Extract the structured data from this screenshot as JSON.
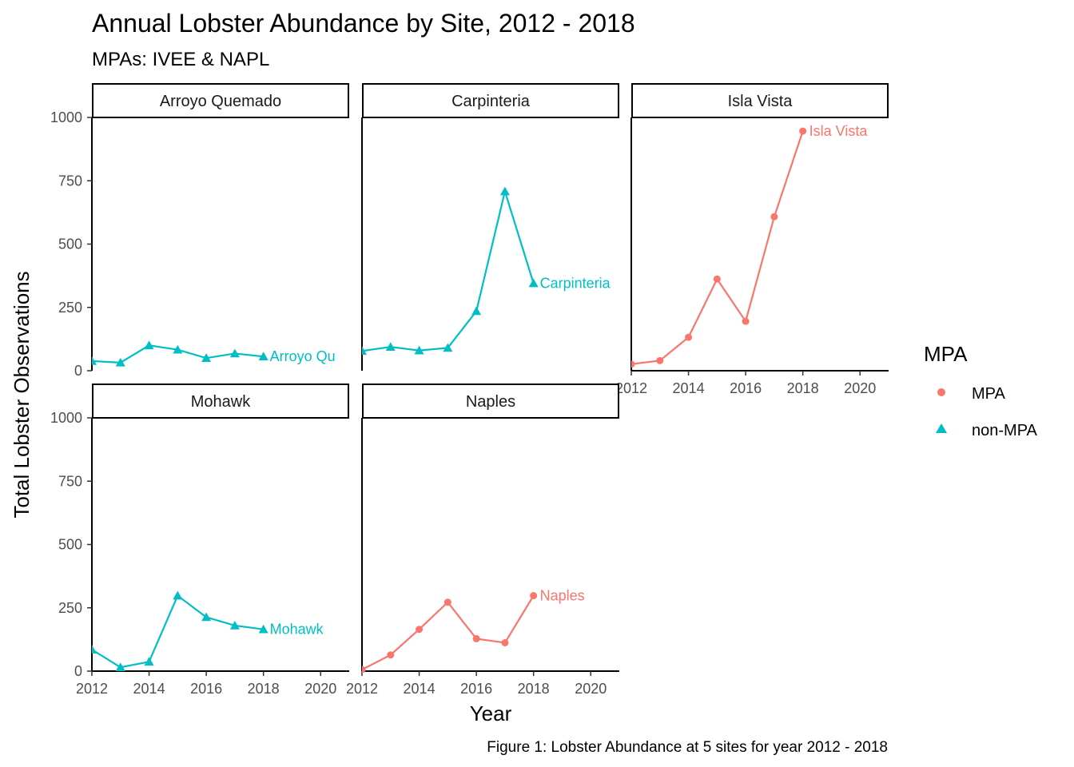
{
  "chart_data": {
    "type": "line",
    "title": "Annual Lobster Abundance by Site, 2012 - 2018",
    "subtitle": "MPAs: IVEE & NAPL",
    "xlabel": "Year",
    "ylabel": "Total Lobster Observations",
    "caption": "Figure 1: Lobster Abundance at 5 sites for year 2012 - 2018",
    "xlim": [
      2012,
      2021
    ],
    "ylim": [
      0,
      1100
    ],
    "x_ticks": [
      2012,
      2014,
      2016,
      2018,
      2020
    ],
    "y_ticks": [
      0,
      250,
      500,
      750,
      1000
    ],
    "grid": false,
    "legend": {
      "title": "MPA",
      "position": "right",
      "entries": [
        {
          "label": "MPA",
          "shape": "circle",
          "color": "#F8766D"
        },
        {
          "label": "non-MPA",
          "shape": "triangle",
          "color": "#00BFC4"
        }
      ]
    },
    "x": [
      2012,
      2013,
      2014,
      2015,
      2016,
      2017,
      2018
    ],
    "panels": [
      {
        "name": "Arroyo Quemado",
        "end_label": "Arroyo Qu",
        "group": "non-MPA",
        "values": [
          38,
          32,
          100,
          83,
          50,
          68,
          56
        ]
      },
      {
        "name": "Carpinteria",
        "end_label": "Carpinteria",
        "group": "non-MPA",
        "values": [
          78,
          94,
          80,
          90,
          235,
          708,
          345
        ]
      },
      {
        "name": "Isla Vista",
        "end_label": "Isla Vista",
        "group": "MPA",
        "values": [
          26,
          40,
          132,
          362,
          195,
          608,
          946
        ]
      },
      {
        "name": "Mohawk",
        "end_label": "Mohawk",
        "group": "non-MPA",
        "values": [
          85,
          15,
          37,
          298,
          213,
          180,
          165
        ]
      },
      {
        "name": "Naples",
        "end_label": "Naples",
        "group": "MPA",
        "values": [
          6,
          64,
          165,
          272,
          128,
          112,
          298
        ]
      }
    ]
  }
}
